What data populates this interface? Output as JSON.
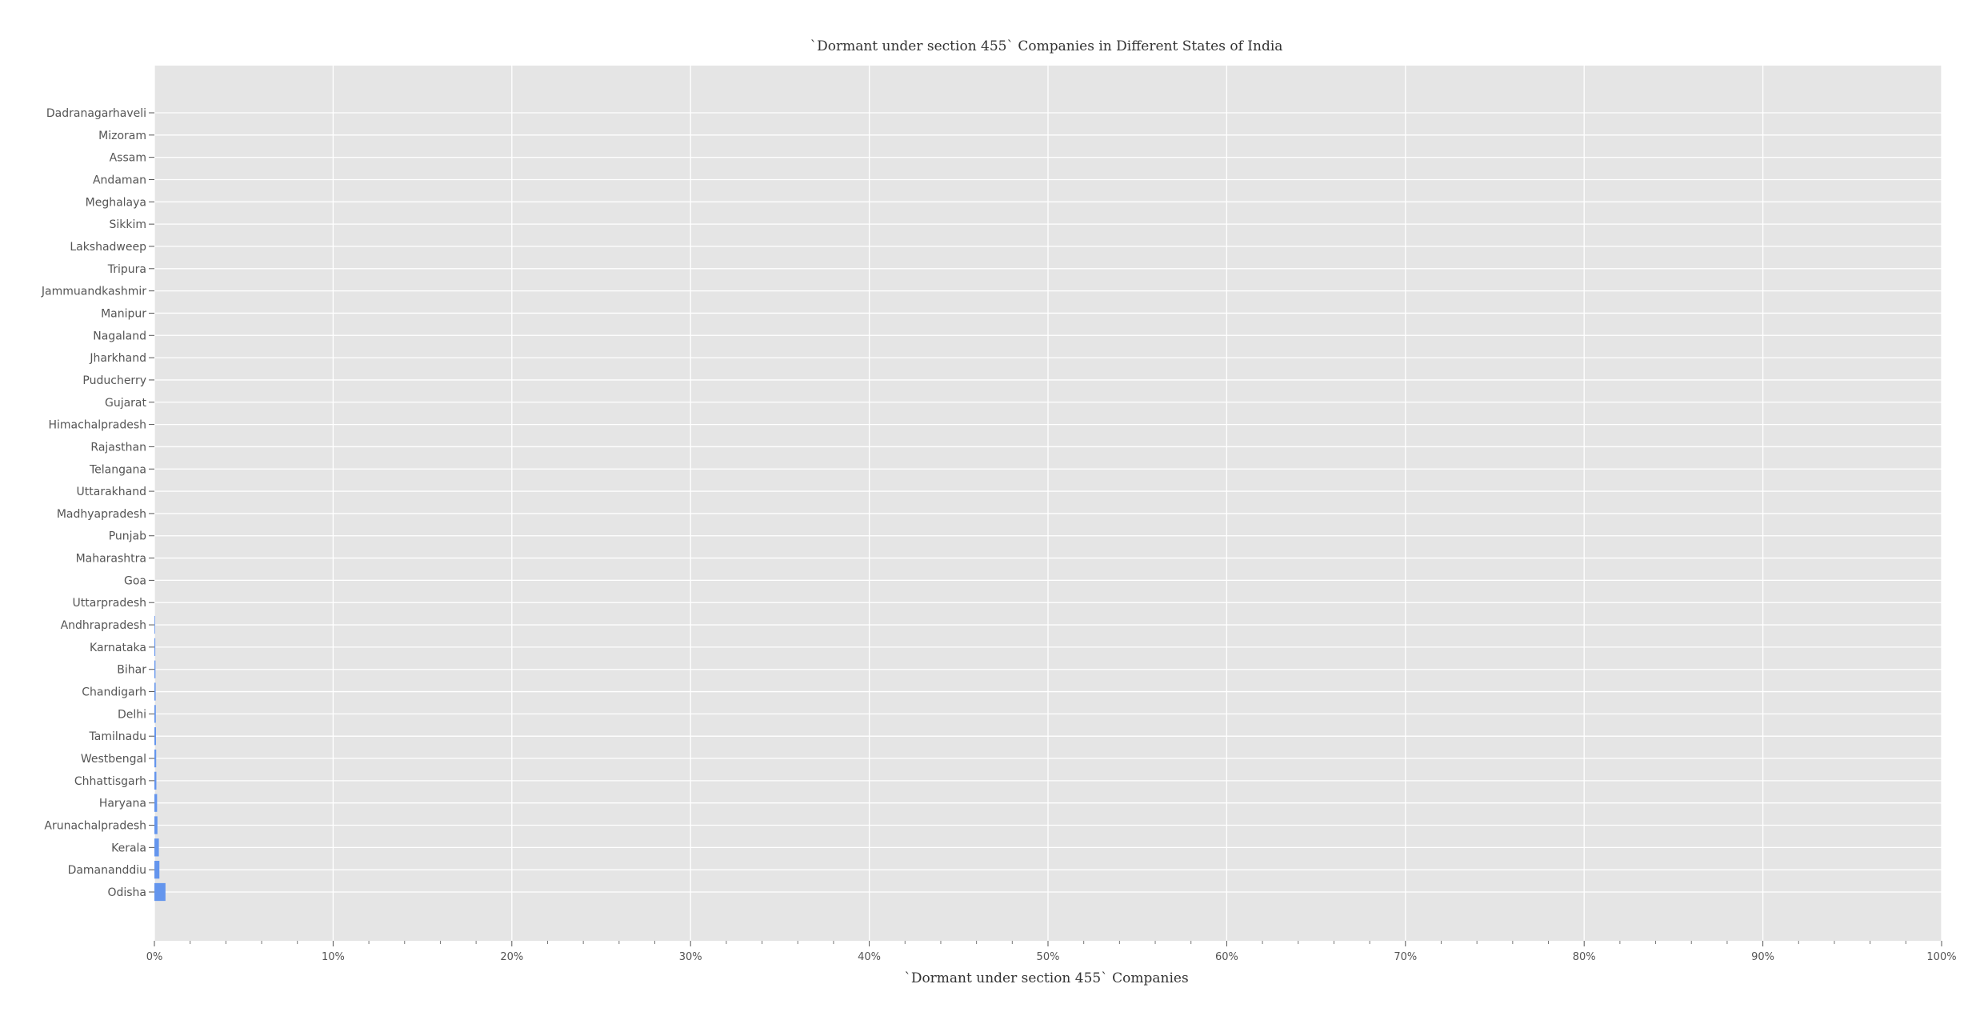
{
  "chart_data": {
    "type": "bar",
    "orientation": "horizontal",
    "title": "`Dormant under section 455` Companies in Different States of India",
    "xlabel": "`Dormant under section 455` Companies",
    "ylabel": "",
    "xlim": [
      0,
      100
    ],
    "x_tick_labels": [
      "0%",
      "10%",
      "20%",
      "30%",
      "40%",
      "50%",
      "60%",
      "70%",
      "80%",
      "90%",
      "100%"
    ],
    "grid": true,
    "bar_color": "#6495ED",
    "categories": [
      "Dadranagarhaveli",
      "Mizoram",
      "Assam",
      "Andaman",
      "Meghalaya",
      "Sikkim",
      "Lakshadweep",
      "Tripura",
      "Jammuandkashmir",
      "Manipur",
      "Nagaland",
      "Jharkhand",
      "Puducherry",
      "Gujarat",
      "Himachalpradesh",
      "Rajasthan",
      "Telangana",
      "Uttarakhand",
      "Madhyapradesh",
      "Punjab",
      "Maharashtra",
      "Goa",
      "Uttarpradesh",
      "Andhrapradesh",
      "Karnataka",
      "Bihar",
      "Chandigarh",
      "Delhi",
      "Tamilnadu",
      "Westbengal",
      "Chhattisgarh",
      "Haryana",
      "Arunachalpradesh",
      "Kerala",
      "Damananddiu",
      "Odisha"
    ],
    "values": [
      0,
      0,
      0,
      0,
      0,
      0,
      0,
      0,
      0,
      0,
      0,
      0,
      0,
      0,
      0,
      0,
      0,
      0,
      0,
      0,
      0,
      0,
      0,
      0.02,
      0.05,
      0.06,
      0.07,
      0.08,
      0.09,
      0.1,
      0.11,
      0.15,
      0.17,
      0.25,
      0.28,
      0.62
    ]
  }
}
